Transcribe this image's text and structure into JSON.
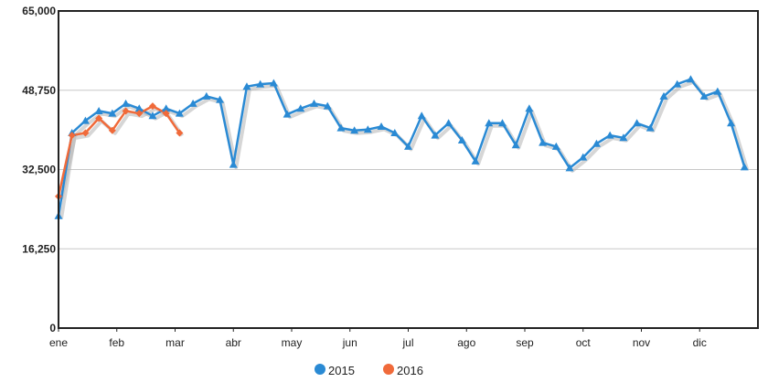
{
  "chart_data": {
    "type": "line",
    "x_labels": [
      "ene",
      "feb",
      "mar",
      "abr",
      "may",
      "jun",
      "jul",
      "ago",
      "sep",
      "oct",
      "nov",
      "dic"
    ],
    "y_ticks": [
      "0",
      "16,250",
      "32,500",
      "48,750",
      "65,000"
    ],
    "ylim": [
      0,
      65000
    ],
    "x_count": 53,
    "grid": true,
    "legend_position": "bottom",
    "series": [
      {
        "name": "2015",
        "color": "#2a8ad4",
        "marker": "triangle",
        "values": [
          23000,
          40000,
          42500,
          44500,
          44000,
          46000,
          45000,
          43500,
          45000,
          44000,
          46000,
          47500,
          46800,
          33500,
          49500,
          50000,
          50200,
          43800,
          45000,
          46000,
          45500,
          41000,
          40500,
          40700,
          41300,
          40000,
          37200,
          43500,
          39500,
          42000,
          38500,
          34200,
          42000,
          42000,
          37500,
          45000,
          38000,
          37200,
          32800,
          35000,
          37800,
          39500,
          39000,
          42000,
          41000,
          47500,
          50000,
          51000,
          47500,
          48500,
          42000,
          33000
        ]
      },
      {
        "name": "2016",
        "color": "#f06a3a",
        "marker": "diamond",
        "values": [
          27000,
          39500,
          40000,
          43000,
          40500,
          44500,
          44000,
          45500,
          44000,
          40000
        ]
      }
    ]
  }
}
